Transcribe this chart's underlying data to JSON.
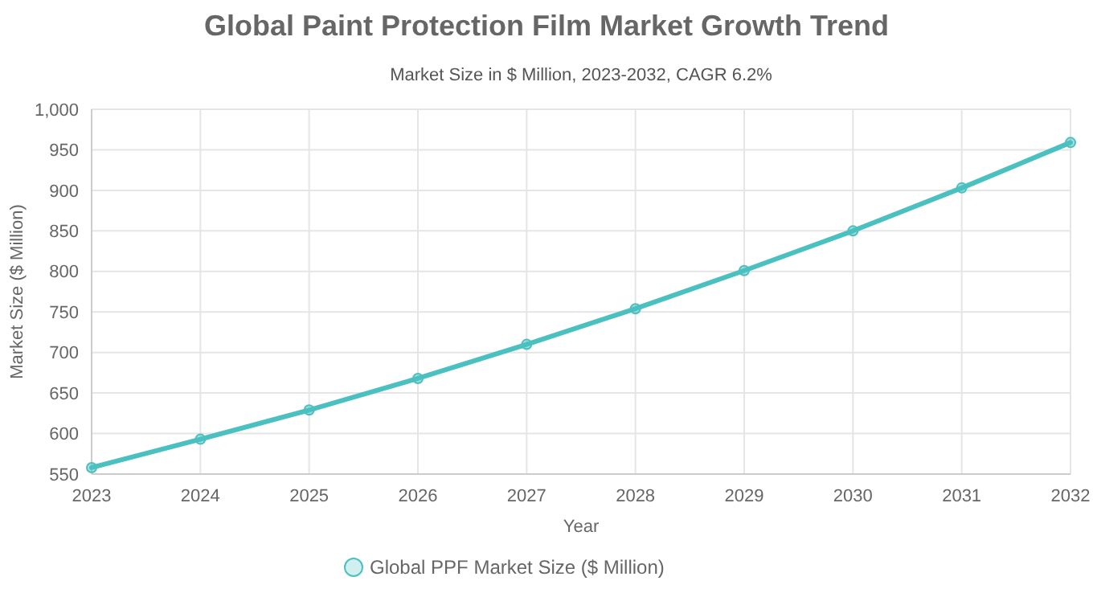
{
  "chart_data": {
    "type": "line",
    "title": "Global Paint Protection Film Market Growth Trend",
    "subtitle": "Market Size in $ Million, 2023-2032, CAGR 6.2%",
    "xlabel": "Year",
    "ylabel": "Market Size ($ Million)",
    "categories": [
      "2023",
      "2024",
      "2025",
      "2026",
      "2027",
      "2028",
      "2029",
      "2030",
      "2031",
      "2032"
    ],
    "series": [
      {
        "name": "Global PPF Market Size ($ Million)",
        "color": "#4bc0c0",
        "values": [
          558,
          593,
          629,
          668,
          710,
          754,
          801,
          850,
          903,
          959
        ]
      }
    ],
    "ylim": [
      550,
      1000
    ],
    "yticks": [
      550,
      600,
      650,
      700,
      750,
      800,
      850,
      900,
      950,
      {
        "value": 1000,
        "label": "1,000"
      }
    ],
    "grid": true,
    "legend": "bottom",
    "marker": "circle",
    "line_style": "solid"
  }
}
